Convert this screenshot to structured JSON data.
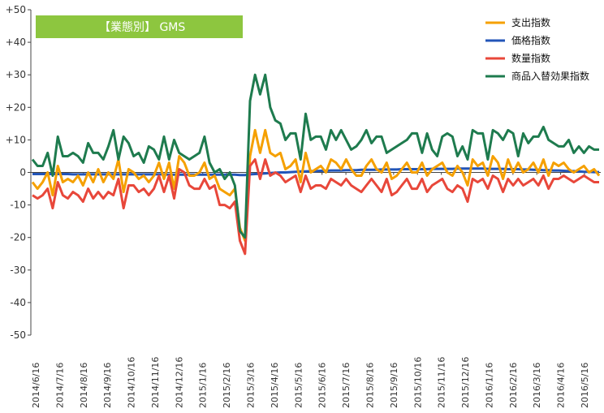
{
  "chart_data": {
    "type": "line",
    "title": "【業態別】 GMS",
    "title_bg": "#8dc63f",
    "ylim": [
      -50,
      50
    ],
    "ytick_step": 10,
    "yticks": [
      "+50",
      "+40",
      "+30",
      "+20",
      "+10",
      "0",
      "-10",
      "-20",
      "-30",
      "-40",
      "-50"
    ],
    "xtick_labels": [
      "2014/6/16",
      "2014/7/16",
      "2014/8/16",
      "2014/9/16",
      "2014/10/16",
      "2014/11/16",
      "2014/12/16",
      "2015/1/16",
      "2015/2/16",
      "2015/3/16",
      "2015/4/16",
      "2015/5/16",
      "2015/6/16",
      "2015/7/16",
      "2015/8/16",
      "2015/9/16",
      "2015/10/16",
      "2015/11/16",
      "2015/12/16",
      "2016/1/16",
      "2016/2/16",
      "2016/3/16",
      "2016/4/16",
      "2016/5/16"
    ],
    "grid": false,
    "legend_position": "top-right",
    "series": [
      {
        "name": "支出指数",
        "color": "#f5a000",
        "values": [
          -3,
          -5,
          -3,
          0,
          -7,
          2,
          -3,
          -2,
          -3,
          -1,
          -4,
          0,
          -3,
          1,
          -3,
          0,
          -2,
          4,
          -6,
          1,
          0,
          -2,
          -1,
          -3,
          -1,
          3,
          -2,
          3,
          -5,
          5,
          3,
          -1,
          -1,
          0,
          3,
          -2,
          -1,
          -5,
          -6,
          -7,
          -5,
          -17,
          -21,
          5,
          13,
          6,
          13,
          6,
          5,
          6,
          1,
          2,
          4,
          -3,
          6,
          0,
          1,
          2,
          0,
          4,
          3,
          1,
          4,
          1,
          -1,
          -1,
          2,
          4,
          1,
          0,
          3,
          -2,
          -1,
          1,
          3,
          0,
          0,
          3,
          -1,
          1,
          2,
          3,
          0,
          -1,
          2,
          0,
          -4,
          4,
          2,
          3,
          -1,
          5,
          3,
          -2,
          4,
          0,
          3,
          0,
          1,
          3,
          0,
          4,
          -1,
          3,
          2,
          3,
          1,
          0,
          1,
          2,
          0,
          1,
          -1
        ]
      },
      {
        "name": "価格指数",
        "color": "#2255b8",
        "values": [
          -0.5,
          -0.5,
          -0.5,
          -0.5,
          -0.5,
          -0.5,
          -0.5,
          -0.5,
          -0.6,
          -0.6,
          -0.6,
          -0.6,
          -0.6,
          -0.6,
          -0.6,
          -0.6,
          -0.6,
          -0.6,
          -0.6,
          -0.6,
          -0.6,
          -0.6,
          -0.6,
          -0.6,
          -0.6,
          -0.6,
          -0.6,
          -0.7,
          -0.7,
          -0.7,
          -0.7,
          -0.7,
          -0.7,
          -0.7,
          -0.7,
          -0.7,
          -0.7,
          -0.7,
          -0.7,
          -0.7,
          -0.7,
          -0.8,
          -0.8,
          -0.6,
          -0.5,
          -0.4,
          -0.3,
          -0.2,
          -0.1,
          0,
          0,
          0.1,
          0.2,
          0.3,
          0.3,
          0.4,
          0.4,
          0.5,
          0.5,
          0.6,
          0.6,
          0.6,
          0.7,
          0.7,
          0.7,
          0.8,
          0.8,
          0.8,
          0.8,
          0.9,
          0.9,
          0.9,
          0.9,
          1,
          1,
          1,
          1,
          1,
          1,
          1.1,
          1.1,
          1.1,
          1.1,
          1.1,
          1.2,
          1.2,
          1.2,
          1.2,
          1.2,
          1.2,
          1.1,
          1.1,
          1.1,
          1.1,
          1,
          1,
          1,
          0.9,
          0.9,
          0.8,
          0.8,
          0.7,
          0.7,
          0.6,
          0.6,
          0.5,
          0.4,
          0.4,
          0.3,
          0.2,
          0.2,
          0.1,
          0.1
        ]
      },
      {
        "name": "数量指数",
        "color": "#e8473a",
        "values": [
          -7,
          -8,
          -7,
          -5,
          -11,
          -3,
          -7,
          -8,
          -6,
          -7,
          -9,
          -5,
          -8,
          -6,
          -8,
          -6,
          -7,
          -2,
          -11,
          -4,
          -4,
          -6,
          -5,
          -7,
          -5,
          -1,
          -6,
          -1,
          -8,
          1,
          0,
          -4,
          -5,
          -5,
          -2,
          -5,
          -4,
          -10,
          -10,
          -11,
          -9,
          -21,
          -25,
          2,
          4,
          -2,
          4,
          -1,
          0,
          -1,
          -3,
          -2,
          -1,
          -6,
          -1,
          -5,
          -4,
          -4,
          -5,
          -2,
          -3,
          -4,
          -2,
          -4,
          -5,
          -6,
          -4,
          -2,
          -4,
          -6,
          -2,
          -7,
          -6,
          -4,
          -2,
          -5,
          -5,
          -2,
          -6,
          -4,
          -3,
          -2,
          -5,
          -6,
          -4,
          -5,
          -9,
          -2,
          -3,
          -2,
          -5,
          -1,
          -2,
          -6,
          -2,
          -4,
          -2,
          -4,
          -3,
          -2,
          -4,
          -1,
          -5,
          -2,
          -2,
          -1,
          -2,
          -3,
          -2,
          -1,
          -2,
          -3,
          -3
        ]
      },
      {
        "name": "商品入替効果指数",
        "color": "#1e7b4e",
        "values": [
          4,
          2,
          2,
          6,
          -1,
          11,
          5,
          5,
          6,
          5,
          3,
          9,
          6,
          6,
          4,
          8,
          13,
          4,
          11,
          9,
          5,
          6,
          3,
          8,
          7,
          4,
          11,
          4,
          10,
          6,
          5,
          4,
          5,
          6,
          11,
          3,
          0,
          1,
          -2,
          0,
          -4,
          -18,
          -20,
          22,
          30,
          24,
          30,
          20,
          16,
          15,
          10,
          12,
          12,
          4,
          18,
          10,
          11,
          11,
          7,
          13,
          10,
          13,
          10,
          7,
          8,
          10,
          13,
          9,
          11,
          11,
          6,
          7,
          8,
          9,
          10,
          12,
          12,
          6,
          12,
          7,
          5,
          11,
          12,
          11,
          5,
          8,
          4,
          13,
          12,
          12,
          4,
          13,
          12,
          10,
          13,
          12,
          5,
          12,
          9,
          11,
          11,
          14,
          10,
          9,
          8,
          8,
          10,
          6,
          8,
          6,
          8,
          7,
          7
        ]
      }
    ]
  }
}
